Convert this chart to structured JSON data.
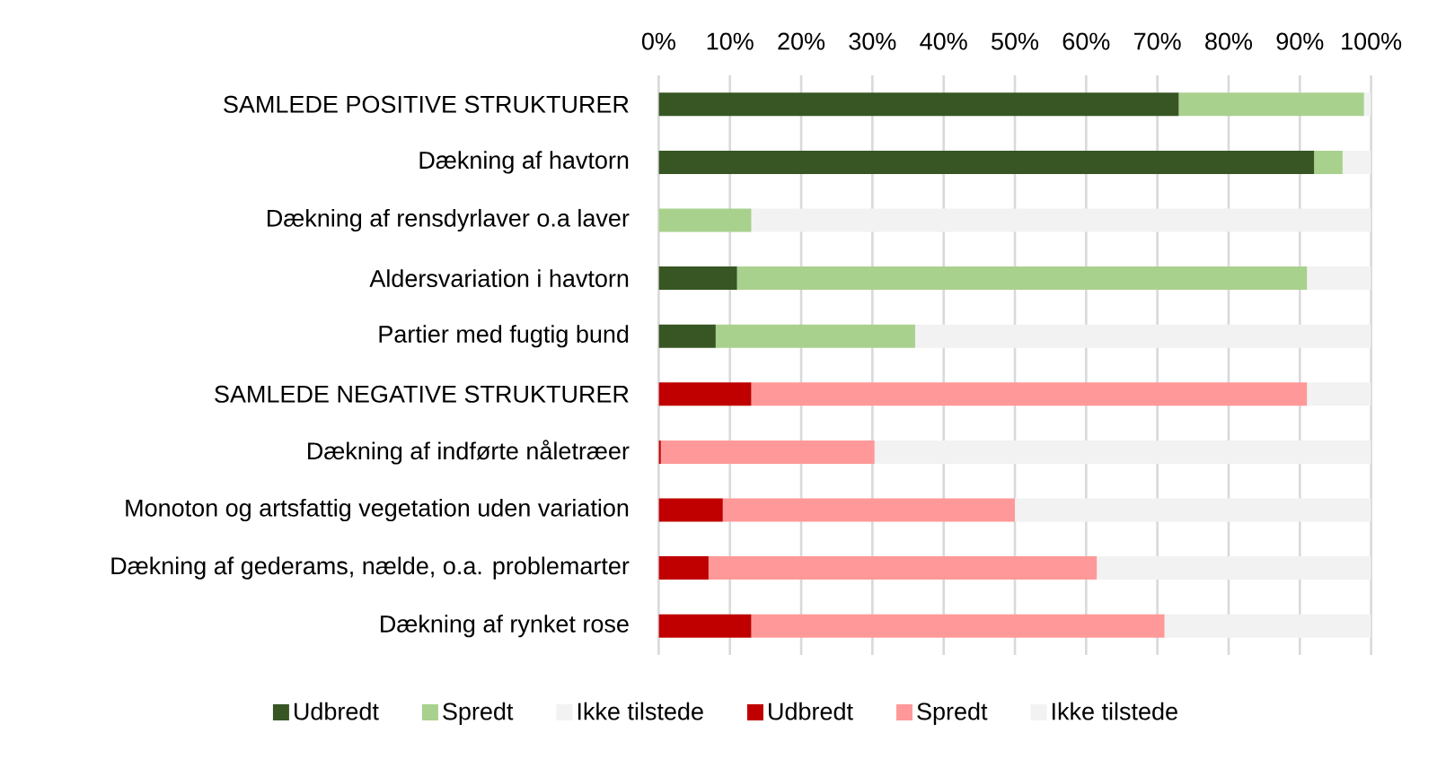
{
  "chart_data": {
    "type": "bar",
    "orientation": "horizontal",
    "stacked": true,
    "categories": [
      "SAMLEDE POSITIVE STRUKTURER",
      "Dækning af havtorn",
      "Dækning af rensdyrlaver o.a laver",
      "Aldersvariation i havtorn",
      "Partier med fugtig bund",
      "SAMLEDE NEGATIVE STRUKTURER",
      "Dækning af indførte nåletræer",
      "Monoton og artsfattig vegetation uden variation",
      "Dækning af gederams, nælde, o.a. problemarter",
      "Dækning af rynket rose"
    ],
    "series": [
      {
        "name": "Udbredt",
        "color": "#375623",
        "values": [
          73,
          92,
          null,
          11,
          8,
          null,
          null,
          null,
          null,
          null
        ]
      },
      {
        "name": "Spredt",
        "color": "#a9d18e",
        "values": [
          26,
          4,
          13,
          80,
          28,
          null,
          null,
          null,
          null,
          null
        ]
      },
      {
        "name": "Ikke tilstede",
        "color": "#f2f2f2",
        "values": [
          1,
          4,
          87,
          9,
          64,
          null,
          null,
          null,
          null,
          null
        ]
      },
      {
        "name": "Udbredt",
        "color": "#c00000",
        "values": [
          null,
          null,
          null,
          null,
          null,
          13,
          0.3,
          9,
          7,
          13
        ]
      },
      {
        "name": "Spredt",
        "color": "#ff9999",
        "values": [
          null,
          null,
          null,
          null,
          null,
          78,
          30,
          41,
          54.5,
          58
        ]
      },
      {
        "name": "Ikke tilstede",
        "color": "#f2f2f2",
        "values": [
          null,
          null,
          null,
          null,
          null,
          9,
          69.7,
          50,
          38.5,
          29
        ]
      }
    ],
    "xlim": [
      0,
      100
    ],
    "xticks": [
      {
        "value": 0,
        "label": "0%"
      },
      {
        "value": 10,
        "label": "10%"
      },
      {
        "value": 20,
        "label": "20%"
      },
      {
        "value": 30,
        "label": "30%"
      },
      {
        "value": 40,
        "label": "40%"
      },
      {
        "value": 50,
        "label": "50%"
      },
      {
        "value": 60,
        "label": "60%"
      },
      {
        "value": 70,
        "label": "70%"
      },
      {
        "value": 80,
        "label": "80%"
      },
      {
        "value": 90,
        "label": "90%"
      },
      {
        "value": 100,
        "label": "100%"
      }
    ],
    "grid": "x",
    "legend": "bottom"
  }
}
